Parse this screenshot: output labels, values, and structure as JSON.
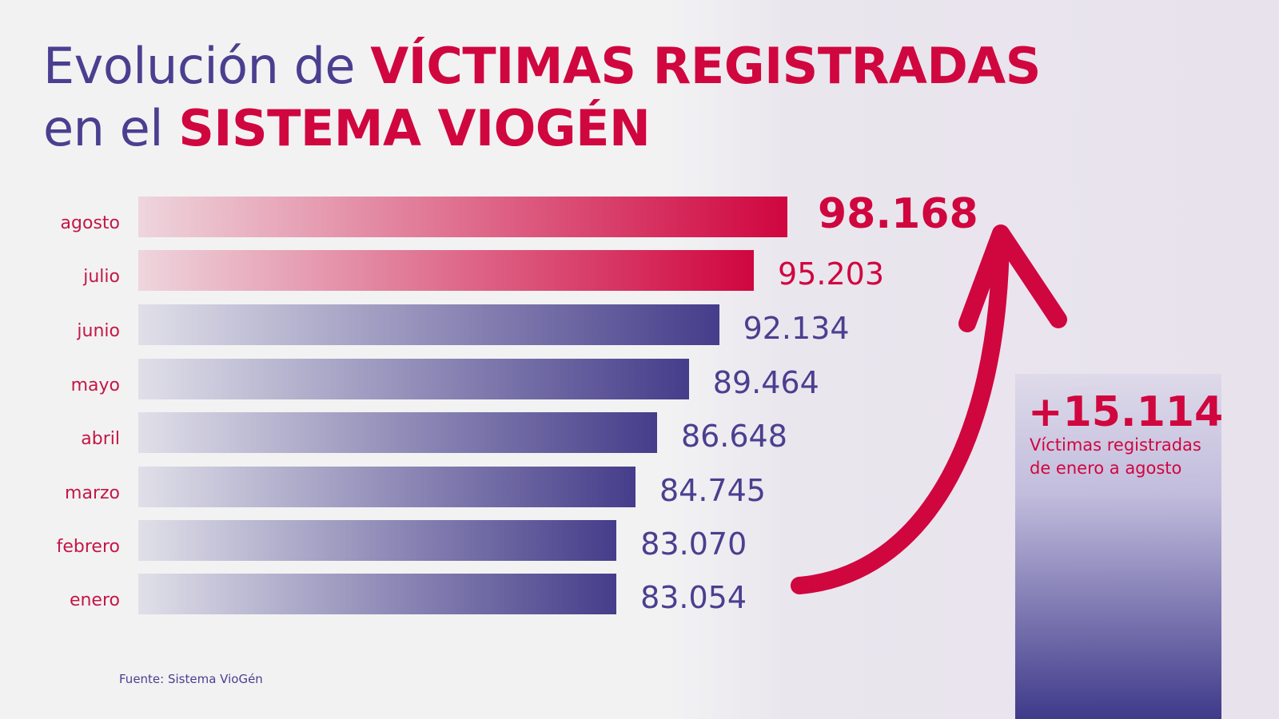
{
  "title": {
    "part1": "Evolución de ",
    "part2": "VÍCTIMAS REGISTRADAS",
    "part3": "en el ",
    "part4": "SISTEMA VIOGÉN"
  },
  "chart_data": {
    "type": "bar",
    "orientation": "horizontal",
    "categories": [
      "agosto",
      "julio",
      "junio",
      "mayo",
      "abril",
      "marzo",
      "febrero",
      "enero"
    ],
    "values": [
      98168,
      95203,
      92134,
      89464,
      86648,
      84745,
      83070,
      83054
    ],
    "labels": [
      "98.168",
      "95.203",
      "92.134",
      "89.464",
      "86.648",
      "84.745",
      "83.070",
      "83.054"
    ],
    "highlight": [
      true,
      true,
      false,
      false,
      false,
      false,
      false,
      false
    ],
    "xlim": [
      40800,
      98168
    ],
    "grid": false,
    "colors": {
      "highlight": "#d0063f",
      "normal": "#453d8a"
    }
  },
  "callout": {
    "value": "+15.114",
    "line1": "Víctimas registradas",
    "line2": "de enero a agosto"
  },
  "source": "Fuente: Sistema VioGén"
}
